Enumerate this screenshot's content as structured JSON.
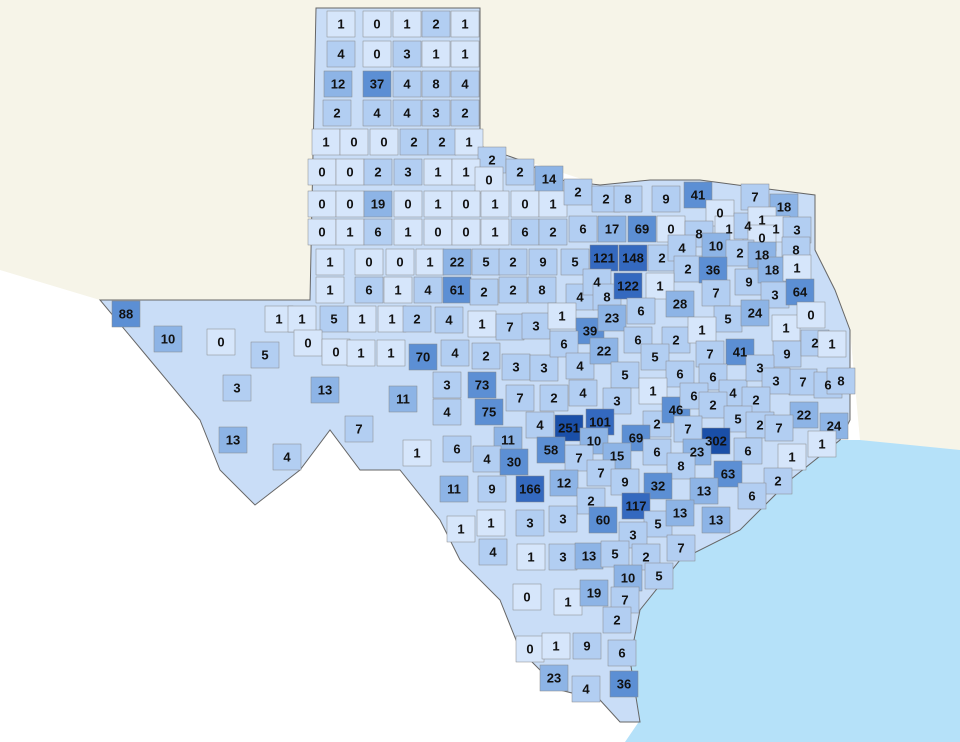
{
  "colors": {
    "us_land": "#f6f4e8",
    "mexico": "#ffffff",
    "gulf": "#b5e1f9",
    "border": "#888888",
    "scale": [
      "#d6e6fb",
      "#b2cef2",
      "#8db4e6",
      "#5c8fd4",
      "#3469bf",
      "#1a4fa8"
    ]
  },
  "county_counts": [
    1,
    0,
    1,
    2,
    1,
    4,
    0,
    3,
    1,
    1,
    12,
    37,
    4,
    8,
    4,
    2,
    4,
    4,
    3,
    2,
    1,
    0,
    0,
    2,
    2,
    1,
    2,
    0,
    0,
    2,
    3,
    1,
    1,
    0,
    2,
    14,
    0,
    0,
    19,
    0,
    1,
    0,
    1,
    0,
    1,
    2,
    2,
    8,
    9,
    41,
    7,
    18,
    0,
    0,
    1,
    6,
    1,
    0,
    0,
    1,
    6,
    2,
    6,
    17,
    69,
    0,
    8,
    1,
    4,
    1,
    1,
    3,
    0,
    1,
    0,
    0,
    1,
    22,
    5,
    2,
    9,
    5,
    121,
    148,
    2,
    4,
    10,
    2,
    18,
    8,
    2,
    36,
    9,
    18,
    1,
    1,
    6,
    1,
    4,
    61,
    2,
    2,
    8,
    4,
    4,
    8,
    122,
    1,
    7,
    3,
    64,
    88,
    10,
    0,
    5,
    3,
    13,
    13,
    4,
    7,
    11,
    1,
    1,
    1,
    5,
    1,
    1,
    2,
    4,
    1,
    7,
    3,
    1,
    39,
    23,
    6,
    28,
    5,
    24,
    1,
    0,
    0,
    0,
    1,
    1,
    70,
    4,
    2,
    3,
    3,
    6,
    4,
    22,
    6,
    2,
    5,
    6,
    1,
    7,
    41,
    9,
    2,
    1,
    3,
    73,
    5,
    1,
    6,
    4,
    3,
    7,
    6,
    8,
    4,
    7,
    2,
    3,
    4,
    75,
    3,
    2,
    46,
    6,
    2,
    2,
    5,
    2,
    22,
    4,
    251,
    101,
    69,
    7,
    302,
    6,
    7,
    24,
    1,
    6,
    11,
    58,
    10,
    23,
    6,
    1,
    4,
    30,
    7,
    15,
    7,
    8,
    63,
    2,
    11,
    9,
    166,
    12,
    9,
    32,
    13,
    6,
    2,
    1,
    1,
    3,
    3,
    60,
    117,
    5,
    13,
    13,
    3,
    4,
    1,
    3,
    13,
    5,
    2,
    7,
    5,
    10,
    0,
    1,
    19,
    7,
    2,
    6,
    0,
    1,
    9,
    23,
    4,
    36
  ]
}
